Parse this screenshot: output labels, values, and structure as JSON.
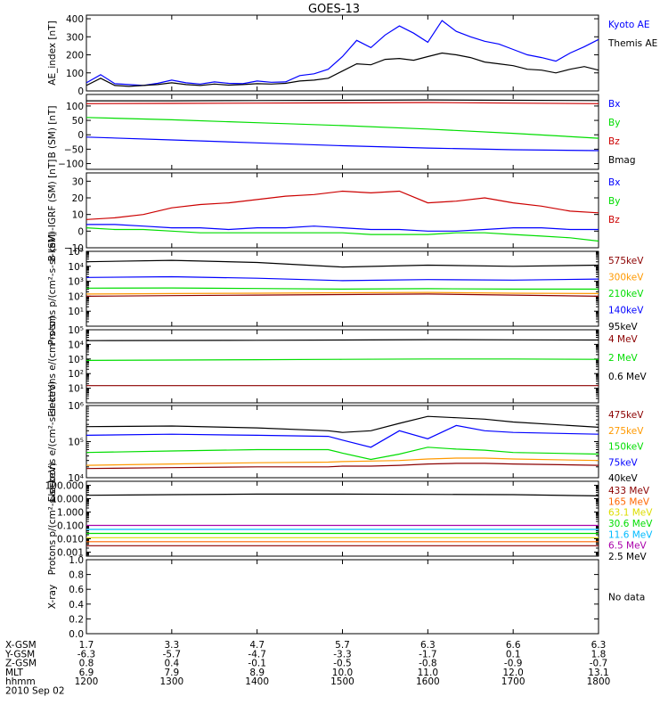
{
  "title": "GOES-13",
  "footer": {
    "date": "2010 Sep 02",
    "rows": [
      {
        "label": "X-GSM",
        "values": [
          "1.7",
          "3.3",
          "4.7",
          "5.7",
          "6.3",
          "6.6",
          "6.3"
        ]
      },
      {
        "label": "Y-GSM",
        "values": [
          "-6.3",
          "-5.7",
          "-4.7",
          "-3.3",
          "-1.7",
          "0.1",
          "1.8"
        ]
      },
      {
        "label": "Z-GSM",
        "values": [
          "0.8",
          "0.4",
          "-0.1",
          "-0.5",
          "-0.8",
          "-0.9",
          "-0.7"
        ]
      },
      {
        "label": "MLT",
        "values": [
          "6.9",
          "7.9",
          "8.9",
          "10.0",
          "11.0",
          "12.0",
          "13.1"
        ]
      },
      {
        "label": "hhmm",
        "values": [
          "1200",
          "1300",
          "1400",
          "1500",
          "1600",
          "1700",
          "1800"
        ]
      }
    ]
  },
  "chart_data": [
    {
      "type": "line",
      "ylabel": "AE_index [nT]",
      "ylim": [
        0,
        420
      ],
      "log": false,
      "yticks": [
        {
          "v": 0,
          "l": "0"
        },
        {
          "v": 100,
          "l": "100"
        },
        {
          "v": 200,
          "l": "200"
        },
        {
          "v": 300,
          "l": "300"
        },
        {
          "v": 400,
          "l": "400"
        }
      ],
      "x": [
        1200,
        1210,
        1220,
        1230,
        1240,
        1250,
        1300,
        1310,
        1320,
        1330,
        1340,
        1350,
        1400,
        1410,
        1420,
        1430,
        1440,
        1450,
        1500,
        1510,
        1520,
        1530,
        1540,
        1550,
        1600,
        1610,
        1620,
        1630,
        1640,
        1650,
        1700,
        1710,
        1720,
        1730,
        1740,
        1750,
        1800
      ],
      "series": [
        {
          "name": "Kyoto AE",
          "color": "#0000ff",
          "values": [
            45,
            90,
            40,
            35,
            30,
            42,
            60,
            45,
            38,
            50,
            42,
            40,
            55,
            48,
            50,
            85,
            95,
            120,
            190,
            280,
            240,
            310,
            360,
            320,
            270,
            390,
            330,
            300,
            275,
            260,
            230,
            200,
            185,
            165,
            210,
            245,
            285
          ]
        },
        {
          "name": "Themis AE",
          "color": "#000000",
          "values": [
            30,
            70,
            30,
            25,
            30,
            35,
            45,
            35,
            30,
            38,
            32,
            35,
            40,
            38,
            42,
            55,
            60,
            70,
            110,
            150,
            145,
            175,
            180,
            170,
            190,
            210,
            200,
            185,
            160,
            150,
            140,
            120,
            115,
            100,
            120,
            135,
            115
          ]
        }
      ]
    },
    {
      "type": "line",
      "ylabel": "B (SM) [nT]",
      "ylim": [
        -120,
        140
      ],
      "log": false,
      "yticks": [
        {
          "v": -100,
          "l": "−100"
        },
        {
          "v": -50,
          "l": "−50"
        },
        {
          "v": 0,
          "l": "0"
        },
        {
          "v": 50,
          "l": "50"
        },
        {
          "v": 100,
          "l": "100"
        }
      ],
      "x": [
        1200,
        1300,
        1400,
        1500,
        1600,
        1700,
        1800
      ],
      "series": [
        {
          "name": "Bx",
          "color": "#0000ff",
          "values": [
            -8,
            -18,
            -28,
            -38,
            -46,
            -52,
            -55
          ]
        },
        {
          "name": "By",
          "color": "#00dd00",
          "values": [
            60,
            52,
            42,
            32,
            20,
            5,
            -12
          ]
        },
        {
          "name": "Bz",
          "color": "#cc0000",
          "values": [
            108,
            109,
            110,
            111,
            112,
            110,
            108
          ]
        },
        {
          "name": "Bmag",
          "color": "#000000",
          "values": [
            118,
            118,
            119,
            120,
            121,
            120,
            119
          ]
        }
      ]
    },
    {
      "type": "line",
      "ylabel": "B (SM)-IGRF (SM) [nT]",
      "ylim": [
        -10,
        35
      ],
      "log": false,
      "yticks": [
        {
          "v": -10,
          "l": "−10"
        },
        {
          "v": 0,
          "l": "0"
        },
        {
          "v": 10,
          "l": "10"
        },
        {
          "v": 20,
          "l": "20"
        },
        {
          "v": 30,
          "l": "30"
        }
      ],
      "x": [
        1200,
        1220,
        1240,
        1300,
        1320,
        1340,
        1400,
        1420,
        1440,
        1500,
        1520,
        1540,
        1600,
        1620,
        1640,
        1700,
        1720,
        1740,
        1800
      ],
      "series": [
        {
          "name": "Bx",
          "color": "#0000ff",
          "values": [
            4,
            4,
            3,
            2,
            2,
            1,
            2,
            2,
            3,
            2,
            1,
            1,
            0,
            0,
            1,
            2,
            2,
            1,
            1
          ]
        },
        {
          "name": "By",
          "color": "#00dd00",
          "values": [
            2,
            1,
            1,
            0,
            -1,
            -1,
            -1,
            -1,
            -1,
            -1,
            -2,
            -2,
            -2,
            -1,
            -1,
            -2,
            -3,
            -4,
            -6
          ]
        },
        {
          "name": "Bz",
          "color": "#cc0000",
          "values": [
            7,
            8,
            10,
            14,
            16,
            17,
            19,
            21,
            22,
            24,
            23,
            24,
            17,
            18,
            20,
            17,
            15,
            12,
            11
          ]
        }
      ]
    },
    {
      "type": "line",
      "ylabel": "Protons p/(cm²-s-sr-keV)",
      "ylim": [
        1,
        100000
      ],
      "log": true,
      "yticks": [
        {
          "v": 10,
          "l": "10¹"
        },
        {
          "v": 100,
          "l": "10²"
        },
        {
          "v": 1000,
          "l": "10³"
        },
        {
          "v": 10000,
          "l": "10⁴"
        },
        {
          "v": 100000,
          "l": "10⁵"
        }
      ],
      "x": [
        1200,
        1300,
        1400,
        1500,
        1600,
        1700,
        1800
      ],
      "series": [
        {
          "name": "575keV",
          "color": "#8b0000",
          "values": [
            100,
            110,
            120,
            130,
            140,
            120,
            100
          ]
        },
        {
          "name": "300keV",
          "color": "#ff9900",
          "values": [
            140,
            150,
            160,
            170,
            180,
            160,
            150
          ]
        },
        {
          "name": "210keV",
          "color": "#00dd00",
          "values": [
            350,
            360,
            330,
            300,
            320,
            300,
            300
          ]
        },
        {
          "name": "140keV",
          "color": "#0000ff",
          "values": [
            1800,
            2000,
            1600,
            1100,
            1300,
            1200,
            1400
          ]
        },
        {
          "name": "95keV",
          "color": "#000000",
          "values": [
            20000,
            25000,
            18000,
            9000,
            12000,
            10000,
            12000
          ]
        }
      ]
    },
    {
      "type": "line",
      "ylabel": "Electrons e/(cm²-s-sr)",
      "ylim": [
        1,
        100000
      ],
      "log": true,
      "yticks": [
        {
          "v": 10,
          "l": "10¹"
        },
        {
          "v": 100,
          "l": "10²"
        },
        {
          "v": 1000,
          "l": "10³"
        },
        {
          "v": 10000,
          "l": "10⁴"
        },
        {
          "v": 100000,
          "l": "10⁵"
        }
      ],
      "x": [
        1200,
        1300,
        1400,
        1500,
        1600,
        1700,
        1800
      ],
      "series": [
        {
          "name": "4 MeV",
          "color": "#8b0000",
          "values": [
            15,
            15,
            15,
            15,
            15,
            15,
            15
          ]
        },
        {
          "name": "2 MeV",
          "color": "#00dd00",
          "values": [
            800,
            850,
            900,
            950,
            1000,
            1000,
            950
          ]
        },
        {
          "name": "0.6 MeV",
          "color": "#000000",
          "values": [
            18000,
            18500,
            19000,
            20000,
            21000,
            20500,
            20000
          ]
        }
      ]
    },
    {
      "type": "line",
      "ylabel": "Electrons e/(cm²-s-sr-keV)",
      "ylim": [
        10000,
        1000000
      ],
      "log": true,
      "yticks": [
        {
          "v": 10000,
          "l": "10⁴"
        },
        {
          "v": 100000,
          "l": "10⁵"
        },
        {
          "v": 1000000,
          "l": "10⁶"
        }
      ],
      "x": [
        1200,
        1300,
        1400,
        1450,
        1500,
        1520,
        1540,
        1600,
        1620,
        1640,
        1700,
        1800
      ],
      "series": [
        {
          "name": "475keV",
          "color": "#8b0000",
          "values": [
            18000,
            19000,
            20000,
            20000,
            21000,
            21000,
            22000,
            24000,
            25000,
            25000,
            24000,
            22000
          ]
        },
        {
          "name": "275keV",
          "color": "#ff9900",
          "values": [
            22000,
            24000,
            26000,
            27000,
            28000,
            29000,
            30000,
            33000,
            35000,
            35000,
            33000,
            30000
          ]
        },
        {
          "name": "150keV",
          "color": "#00dd00",
          "values": [
            50000,
            55000,
            60000,
            60000,
            48000,
            32000,
            45000,
            70000,
            62000,
            58000,
            50000,
            45000
          ]
        },
        {
          "name": "75keV",
          "color": "#0000ff",
          "values": [
            150000,
            160000,
            150000,
            140000,
            110000,
            70000,
            200000,
            120000,
            280000,
            200000,
            180000,
            160000
          ]
        },
        {
          "name": "40keV",
          "color": "#000000",
          "values": [
            260000,
            270000,
            240000,
            200000,
            180000,
            200000,
            320000,
            500000,
            460000,
            420000,
            350000,
            250000
          ]
        }
      ]
    },
    {
      "type": "line",
      "ylabel": "Protons p/(cm²-s-sr-keV)",
      "ylim": [
        0.0005,
        200
      ],
      "log": true,
      "yticks": [
        {
          "v": 0.001,
          "l": "0.001"
        },
        {
          "v": 0.01,
          "l": "0.010"
        },
        {
          "v": 0.1,
          "l": "0.100"
        },
        {
          "v": 1,
          "l": "1.000"
        },
        {
          "v": 10,
          "l": "10.000"
        },
        {
          "v": 100,
          "l": "100.000"
        }
      ],
      "x": [
        1200,
        1300,
        1400,
        1500,
        1600,
        1700,
        1800
      ],
      "series": [
        {
          "name": "433 MeV",
          "color": "#8b0000",
          "values": [
            0.003,
            0.003,
            0.003,
            0.003,
            0.003,
            0.003,
            0.003
          ]
        },
        {
          "name": "165 MeV",
          "color": "#ff6600",
          "values": [
            0.006,
            0.006,
            0.006,
            0.006,
            0.006,
            0.006,
            0.006
          ]
        },
        {
          "name": "63.1 MeV",
          "color": "#dddd00",
          "values": [
            0.012,
            0.012,
            0.012,
            0.012,
            0.012,
            0.012,
            0.012
          ]
        },
        {
          "name": "30.6 MeV",
          "color": "#00dd00",
          "values": [
            0.025,
            0.025,
            0.025,
            0.025,
            0.025,
            0.025,
            0.025
          ]
        },
        {
          "name": "11.6 MeV",
          "color": "#00bbff",
          "values": [
            0.05,
            0.05,
            0.05,
            0.05,
            0.05,
            0.05,
            0.05
          ]
        },
        {
          "name": "6.5 MeV",
          "color": "#aa00aa",
          "values": [
            0.1,
            0.1,
            0.1,
            0.1,
            0.1,
            0.1,
            0.1
          ]
        },
        {
          "name": "2.5 MeV",
          "color": "#000000",
          "values": [
            18,
            20,
            22,
            22,
            21,
            20,
            16
          ]
        }
      ]
    },
    {
      "type": "line",
      "ylabel": "X-ray",
      "ylim": [
        0,
        1
      ],
      "log": false,
      "yticks": [
        {
          "v": 0,
          "l": "0.0"
        },
        {
          "v": 0.2,
          "l": "0.2"
        },
        {
          "v": 0.4,
          "l": "0.4"
        },
        {
          "v": 0.6,
          "l": "0.6"
        },
        {
          "v": 0.8,
          "l": "0.8"
        },
        {
          "v": 1,
          "l": "1.0"
        }
      ],
      "x": [],
      "series": [],
      "note": "No data"
    }
  ]
}
